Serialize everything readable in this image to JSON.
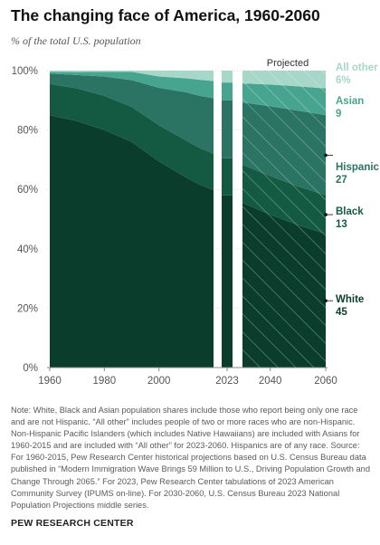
{
  "header": {
    "title": "The changing face of America, 1960-2060",
    "subtitle": "% of the total U.S. population"
  },
  "chart_data": {
    "type": "area",
    "stacked": true,
    "ylim": [
      0,
      100
    ],
    "y_ticks": [
      "0%",
      "20%",
      "40%",
      "60%",
      "80%",
      "100%"
    ],
    "y_tick_values": [
      0,
      20,
      40,
      60,
      80,
      100
    ],
    "x_ticks": [
      "1960",
      "1980",
      "2000",
      "2023",
      "2040",
      "2060"
    ],
    "x_tick_values": [
      1960,
      1980,
      2000,
      2023,
      2040,
      2060
    ],
    "projected_label": "Projected",
    "panels": [
      {
        "name": "historical",
        "x": [
          1960,
          1970,
          1980,
          1990,
          2000,
          2010,
          2015,
          2020
        ]
      },
      {
        "name": "2023",
        "x": [
          2023
        ]
      },
      {
        "name": "projected",
        "x": [
          2030,
          2040,
          2050,
          2060
        ]
      }
    ],
    "series": [
      {
        "name": "White",
        "color": "#0b3d2c",
        "values": {
          "historical": [
            85,
            83,
            80,
            76,
            69.4,
            64,
            61.6,
            59.8
          ],
          "2023": [
            58
          ],
          "projected": [
            55.5,
            51.5,
            48,
            45
          ]
        }
      },
      {
        "name": "Black",
        "color": "#145a43",
        "values": {
          "historical": [
            10.5,
            11,
            11.5,
            11.8,
            12.2,
            12.4,
            12.3,
            12.2
          ],
          "2023": [
            12.5
          ],
          "projected": [
            12.8,
            13,
            13,
            13
          ]
        }
      },
      {
        "name": "Hispanic",
        "color": "#2b7362",
        "values": {
          "historical": [
            3.5,
            4.5,
            6.5,
            9,
            12.6,
            16.3,
            17.6,
            18.7
          ],
          "2023": [
            19.5
          ],
          "projected": [
            21,
            23.5,
            25.5,
            27
          ]
        }
      },
      {
        "name": "Asian",
        "color": "#47a58f",
        "values": {
          "historical": [
            0.6,
            1,
            1.6,
            2.8,
            3.8,
            4.7,
            5.4,
            5.8
          ],
          "2023": [
            6
          ],
          "projected": [
            6.4,
            7.3,
            8.2,
            9
          ]
        }
      },
      {
        "name": "All other",
        "color": "#a6d7c9",
        "values": {
          "historical": [
            0.4,
            0.5,
            0.4,
            0.4,
            2,
            2.6,
            3.1,
            3.5
          ],
          "2023": [
            4
          ],
          "projected": [
            4.3,
            4.7,
            5.3,
            6
          ]
        }
      }
    ],
    "end_labels": [
      {
        "series": "All other",
        "name": "All other",
        "value": "6%",
        "color": "#a6d7c9"
      },
      {
        "series": "Asian",
        "name": "Asian",
        "value": "9",
        "color": "#47a58f"
      },
      {
        "series": "Hispanic",
        "name": "Hispanic",
        "value": "27",
        "color": "#2b7362"
      },
      {
        "series": "Black",
        "name": "Black",
        "value": "13",
        "color": "#145a43"
      },
      {
        "series": "White",
        "name": "White",
        "value": "45",
        "color": "#0b3d2c"
      }
    ]
  },
  "note": "Note: White, Black and Asian population shares include those who report being only one race and are not Hispanic. “All other” includes people of two or more races who are non-Hispanic. Non-Hispanic Pacific Islanders (which includes Native Hawaiians) are included with Asians for 1960-2015 and are included with “All other” for 2023-2060. Hispanics are of any race. Source: For 1960-2015, Pew Research Center historical projections based on U.S. Census Bureau data published in “Modern Immigration Wave Brings 59 Million to U.S., Driving Population Growth and Change Through 2065.” For 2023, Pew Research Center tabulations of 2023 American Community Survey (IPUMS on-line). For 2030-2060, U.S. Census Bureau 2023 National Population Projections middle series.",
  "source_org": "PEW RESEARCH CENTER"
}
